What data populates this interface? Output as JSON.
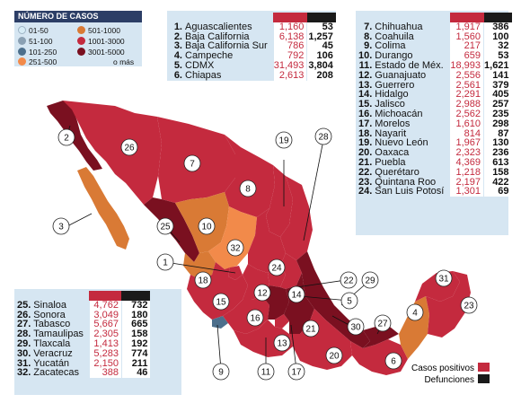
{
  "legend": {
    "title": "NÚMERO DE CASOS",
    "items": [
      {
        "label": "01-50",
        "color": "#d7ecf6"
      },
      {
        "label": "51-100",
        "color": "#8aa0b3"
      },
      {
        "label": "101-250",
        "color": "#4c6f8c"
      },
      {
        "label": "251-500",
        "color": "#f28a4a"
      },
      {
        "label": "501-1000",
        "color": "#d97a35"
      },
      {
        "label": "1001-3000",
        "color": "#c42a3e"
      },
      {
        "label": "3001-5000",
        "color": "#7a1020"
      },
      {
        "label": "o más",
        "color": ""
      }
    ]
  },
  "key": {
    "cases_label": "Casos positivos",
    "deaths_label": "Defunciones",
    "cases_color": "#c42a3e",
    "deaths_color": "#1a1a1a"
  },
  "states": [
    {
      "n": "1.",
      "name": "Aguascalientes",
      "cases": "1,160",
      "deaths": "53"
    },
    {
      "n": "2.",
      "name": "Baja California",
      "cases": "6,138",
      "deaths": "1,257"
    },
    {
      "n": "3.",
      "name": "Baja California Sur",
      "cases": "786",
      "deaths": "45"
    },
    {
      "n": "4.",
      "name": "Campeche",
      "cases": "792",
      "deaths": "106"
    },
    {
      "n": "5.",
      "name": "CDMX",
      "cases": "31,493",
      "deaths": "3,804"
    },
    {
      "n": "6.",
      "name": "Chiapas",
      "cases": "2,613",
      "deaths": "208"
    },
    {
      "n": "7.",
      "name": "Chihuahua",
      "cases": "1,917",
      "deaths": "386"
    },
    {
      "n": "8.",
      "name": "Coahuila",
      "cases": "1,560",
      "deaths": "100"
    },
    {
      "n": "9.",
      "name": "Colima",
      "cases": "217",
      "deaths": "32"
    },
    {
      "n": "10.",
      "name": "Durango",
      "cases": "659",
      "deaths": "53"
    },
    {
      "n": "11.",
      "name": "Estado de Méx.",
      "cases": "18,993",
      "deaths": "1,621"
    },
    {
      "n": "12.",
      "name": "Guanajuato",
      "cases": "2,556",
      "deaths": "141"
    },
    {
      "n": "13.",
      "name": "Guerrero",
      "cases": "2,561",
      "deaths": "379"
    },
    {
      "n": "14.",
      "name": "Hidalgo",
      "cases": "2,291",
      "deaths": "405"
    },
    {
      "n": "15.",
      "name": "Jalisco",
      "cases": "2,988",
      "deaths": "257"
    },
    {
      "n": "16.",
      "name": "Michoacán",
      "cases": "2,562",
      "deaths": "235"
    },
    {
      "n": "17.",
      "name": "Morelos",
      "cases": "1,610",
      "deaths": "298"
    },
    {
      "n": "18.",
      "name": "Nayarit",
      "cases": "814",
      "deaths": "87"
    },
    {
      "n": "19.",
      "name": "Nuevo León",
      "cases": "1,967",
      "deaths": "130"
    },
    {
      "n": "20.",
      "name": "Oaxaca",
      "cases": "2,323",
      "deaths": "236"
    },
    {
      "n": "21.",
      "name": "Puebla",
      "cases": "4,369",
      "deaths": "613"
    },
    {
      "n": "22.",
      "name": "Querétaro",
      "cases": "1,218",
      "deaths": "158"
    },
    {
      "n": "23.",
      "name": "Quintana Roo",
      "cases": "2,197",
      "deaths": "422"
    },
    {
      "n": "24.",
      "name": "San Luis Potosí",
      "cases": "1,301",
      "deaths": "69"
    },
    {
      "n": "25.",
      "name": "Sinaloa",
      "cases": "4,762",
      "deaths": "732"
    },
    {
      "n": "26.",
      "name": "Sonora",
      "cases": "3,049",
      "deaths": "180"
    },
    {
      "n": "27.",
      "name": "Tabasco",
      "cases": "5,667",
      "deaths": "665"
    },
    {
      "n": "28.",
      "name": "Tamaulipas",
      "cases": "2,305",
      "deaths": "158"
    },
    {
      "n": "29.",
      "name": "Tlaxcala",
      "cases": "1,413",
      "deaths": "192"
    },
    {
      "n": "30.",
      "name": "Veracruz",
      "cases": "5,283",
      "deaths": "774"
    },
    {
      "n": "31.",
      "name": "Yucatán",
      "cases": "2,150",
      "deaths": "211"
    },
    {
      "n": "32.",
      "name": "Zacatecas",
      "cases": "388",
      "deaths": "46"
    }
  ],
  "map_labels": [
    "1",
    "2",
    "3",
    "4",
    "5",
    "6",
    "7",
    "8",
    "9",
    "10",
    "11",
    "12",
    "13",
    "14",
    "15",
    "16",
    "17",
    "18",
    "19",
    "20",
    "21",
    "22",
    "23",
    "24",
    "25",
    "26",
    "27",
    "28",
    "29",
    "30",
    "31",
    "32"
  ]
}
